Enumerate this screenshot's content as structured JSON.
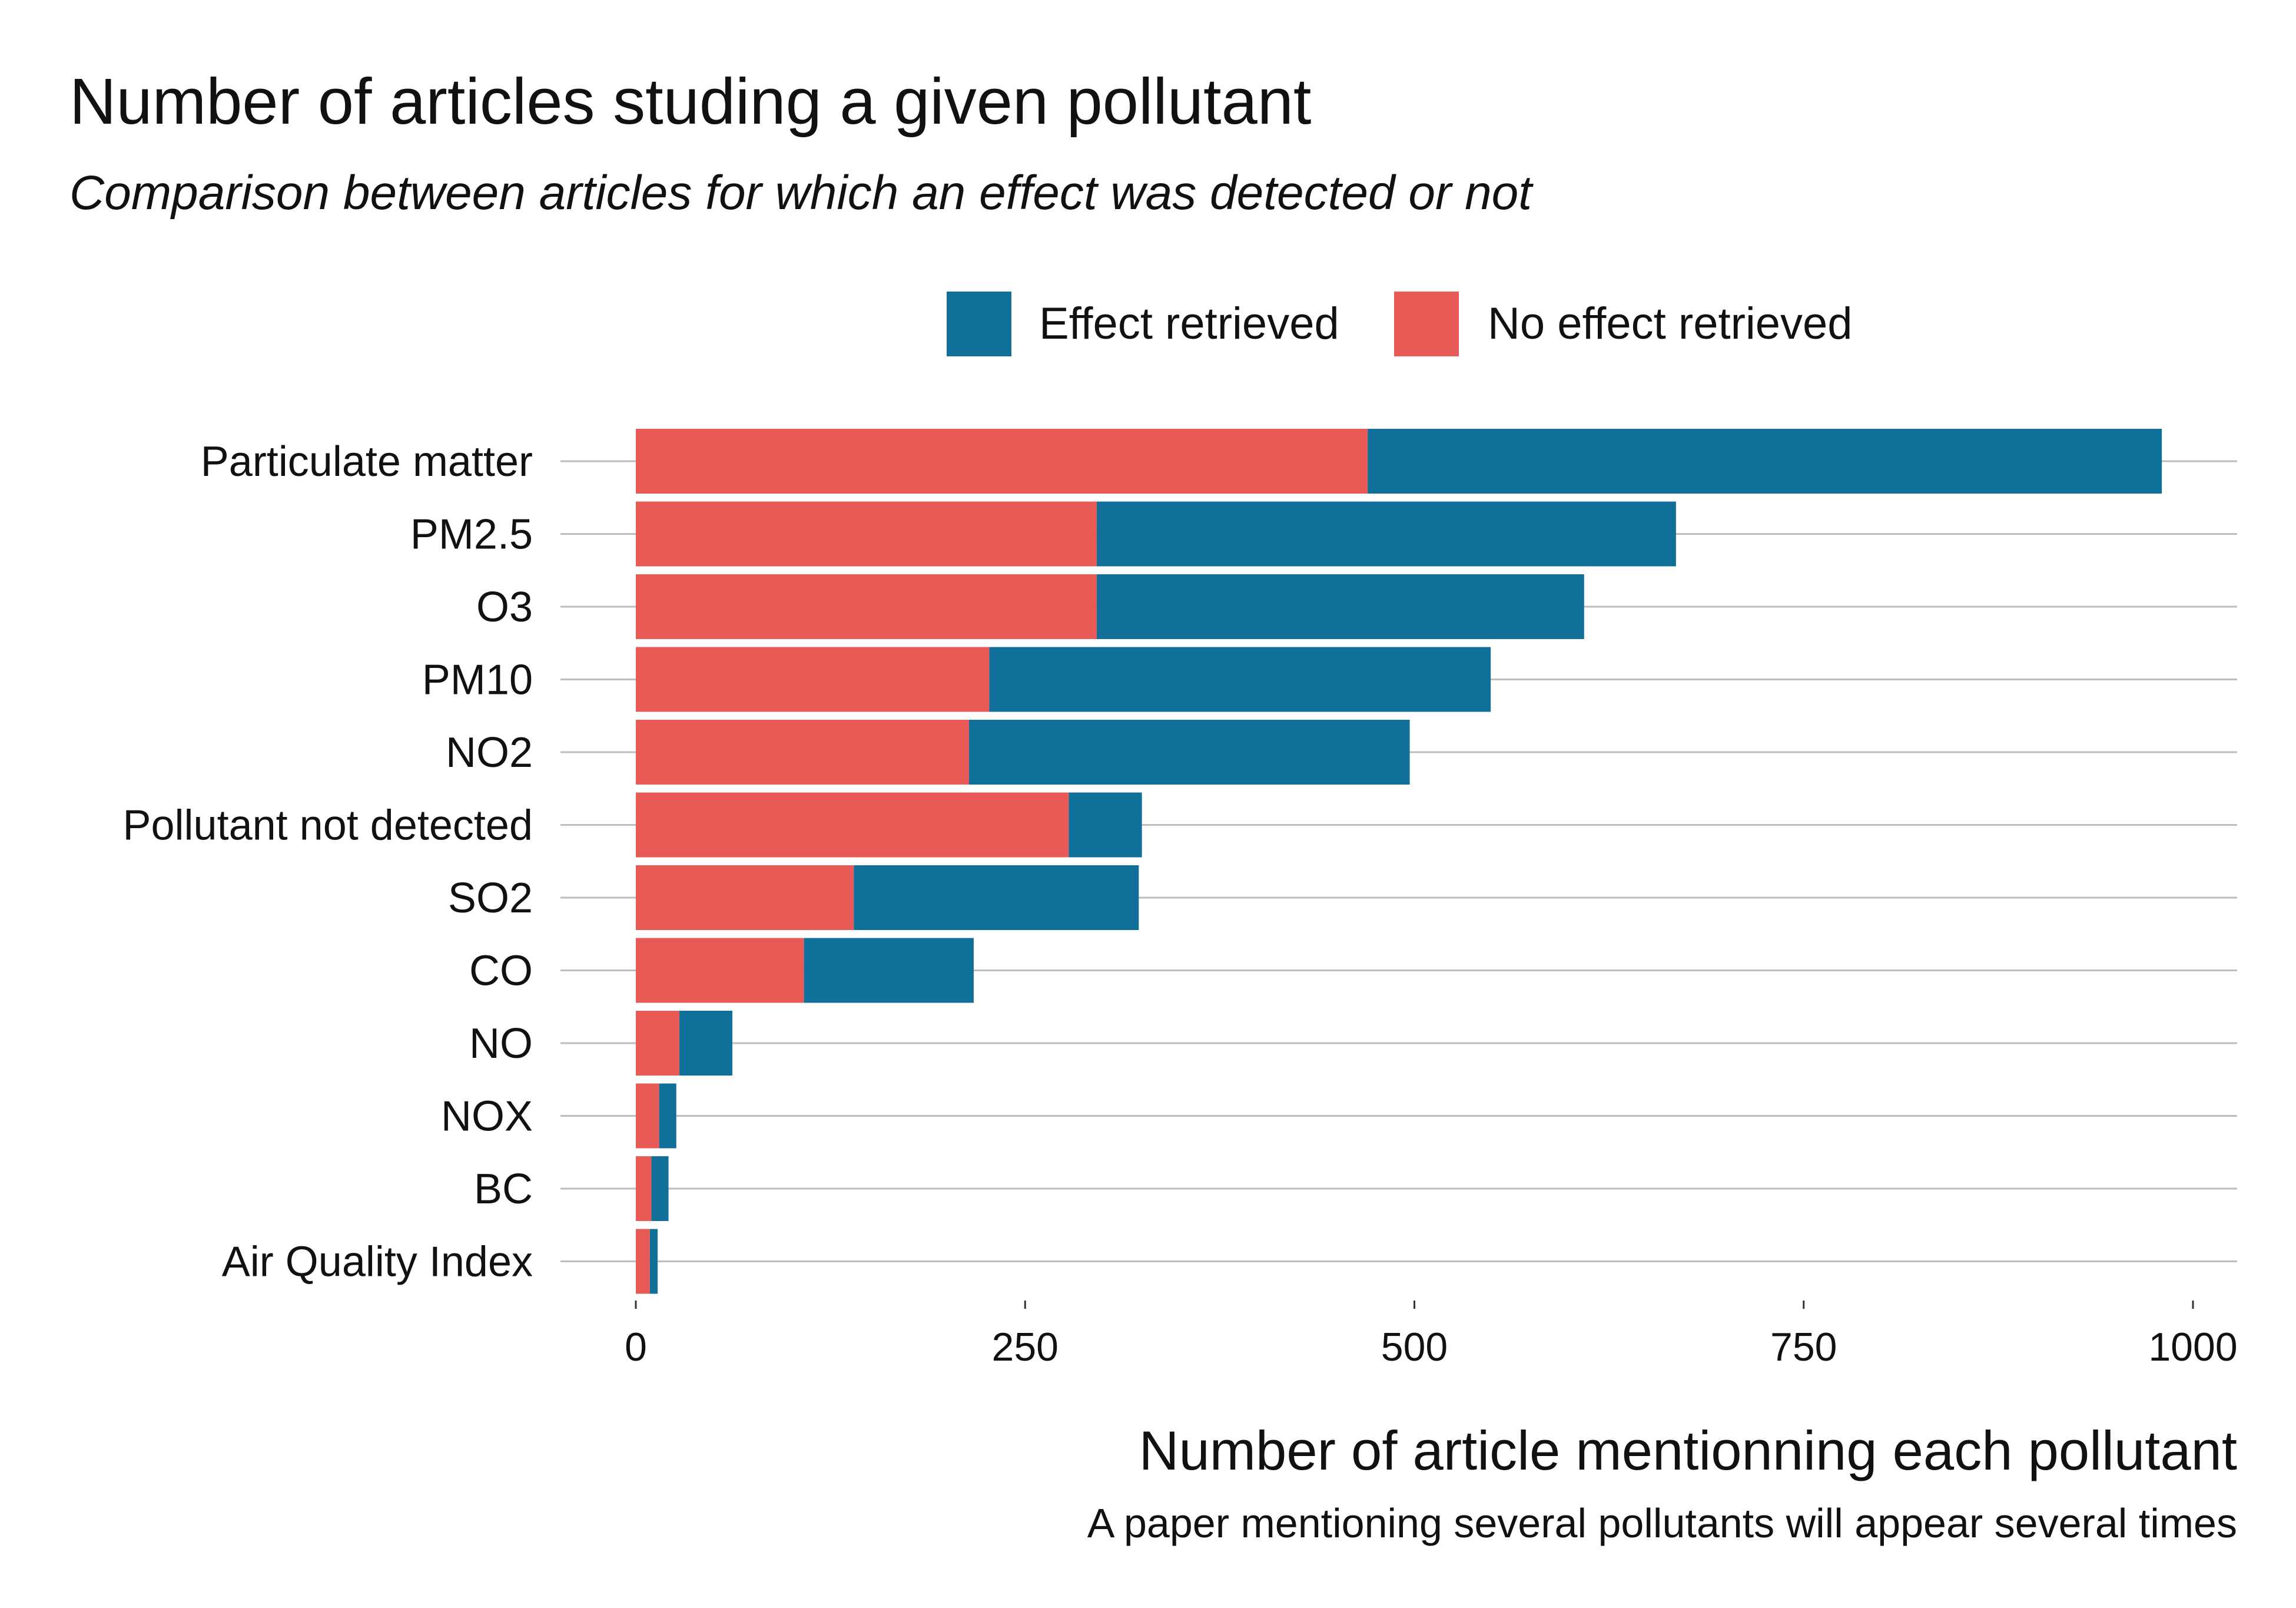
{
  "chart_data": {
    "type": "bar",
    "orientation": "horizontal",
    "stacked": true,
    "title": "Number of articles studing a given pollutant",
    "subtitle": "Comparison between articles for which an effect was detected or not",
    "xlabel": "Number of article mentionning each pollutant",
    "caption": "A paper mentioning several pollutants will appear several times",
    "categories": [
      "Particulate matter",
      "PM2.5",
      "O3",
      "PM10",
      "NO2",
      "Pollutant not detected",
      "SO2",
      "CO",
      "NO",
      "NOX",
      "BC",
      "Air Quality Index"
    ],
    "series": [
      {
        "name": "No effect retrieved",
        "color": "#E85A56",
        "values": [
          470,
          296,
          296,
          227,
          214,
          278,
          140,
          108,
          28,
          15,
          10,
          9
        ]
      },
      {
        "name": "Effect retrieved",
        "color": "#10709A",
        "values": [
          510,
          372,
          313,
          322,
          283,
          47,
          183,
          109,
          34,
          11,
          11,
          5
        ]
      }
    ],
    "xlim": [
      0,
      1000
    ],
    "xticks": [
      0,
      250,
      500,
      750,
      1000
    ],
    "legend_position": "top",
    "legend_order": [
      "Effect retrieved",
      "No effect retrieved"
    ],
    "grid": "horizontal-major"
  }
}
